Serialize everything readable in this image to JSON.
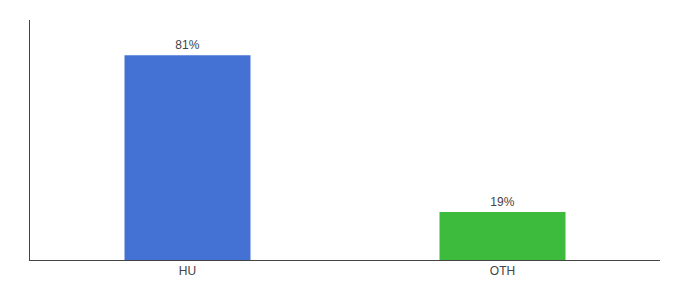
{
  "chart_data": {
    "type": "bar",
    "categories": [
      "HU",
      "OTH"
    ],
    "values": [
      81,
      19
    ],
    "value_labels": [
      "81%",
      "19%"
    ],
    "colors": [
      "#4472d4",
      "#3dbb3d"
    ],
    "ylim": [
      0,
      95
    ],
    "yticks": [],
    "grid": false,
    "data_labels": true,
    "tick_labels": "x"
  }
}
